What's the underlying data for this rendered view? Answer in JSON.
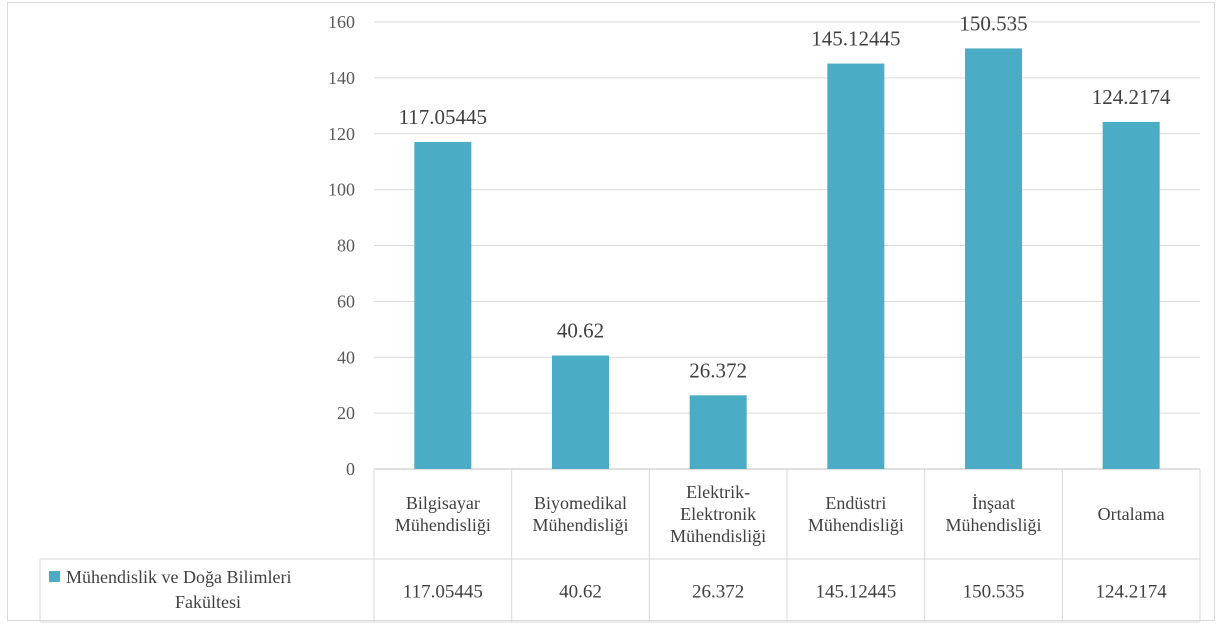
{
  "chart_data": {
    "type": "bar",
    "categories": [
      [
        "Bilgisayar",
        "Mühendisliği"
      ],
      [
        "Biyomedikal",
        "Mühendisliği"
      ],
      [
        "Elektrik-",
        "Elektronik",
        "Mühendisliği"
      ],
      [
        "Endüstri",
        "Mühendisliği"
      ],
      [
        "İnşaat",
        "Mühendisliği"
      ],
      [
        "Ortalama"
      ]
    ],
    "series": [
      {
        "name": "Mühendislik ve Doğa Bilimleri Fakültesi",
        "name_lines": [
          "Mühendislik ve Doğa Bilimleri",
          "Fakültesi"
        ],
        "values": [
          117.05445,
          40.62,
          26.372,
          145.12445,
          150.535,
          124.2174
        ],
        "value_labels": [
          "117.05445",
          "40.62",
          "26.372",
          "145.12445",
          "150.535",
          "124.2174"
        ]
      }
    ],
    "ylim": [
      0,
      160
    ],
    "yticks": [
      "0",
      "20",
      "40",
      "60",
      "80",
      "100",
      "120",
      "140",
      "160"
    ],
    "grid": true,
    "data_table": true,
    "colors": {
      "bar": "#4bacc6",
      "grid": "#d9d9d9",
      "axis": "#bfbfbf"
    }
  }
}
